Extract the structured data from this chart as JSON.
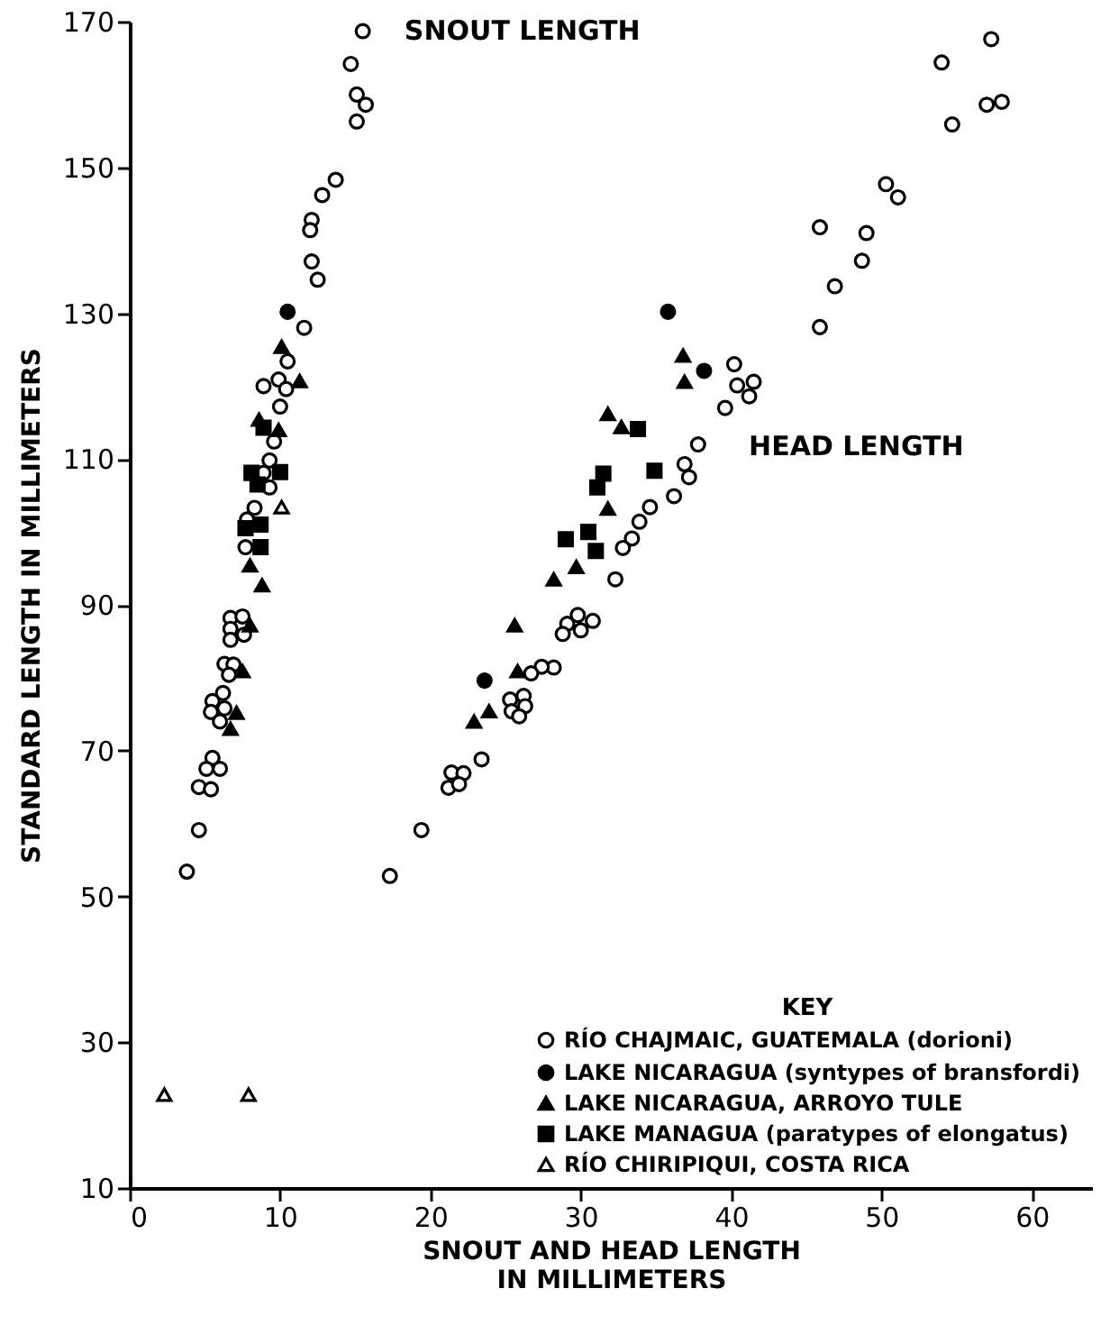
{
  "chart_data": {
    "type": "scatter",
    "xlabel": "SNOUT AND HEAD LENGTH\nIN MILLIMETERS",
    "ylabel": "STANDARD LENGTH IN MILLIMETERS",
    "legend_title": "KEY",
    "legend": "bottom right",
    "grid": false,
    "xlim": [
      0,
      64
    ],
    "xticks": [
      0,
      10,
      20,
      30,
      40,
      50,
      60
    ],
    "ylim": [
      10,
      170
    ],
    "yticks": [
      10,
      30,
      50,
      70,
      90,
      110,
      130,
      150,
      170
    ],
    "annotations": [
      "SNOUT LENGTH",
      "HEAD LENGTH"
    ],
    "series": [
      {
        "name": "RÍO CHAJMAIC, GUATEMALA (dorioni)",
        "color": "#000000",
        "marker": "circle-open",
        "x": [
          15.5,
          14.7,
          15.1,
          15.7,
          15.1,
          13.7,
          12.8,
          12.1,
          12.0,
          12.1,
          12.5,
          11.6,
          10.5,
          8.9,
          9.9,
          10.4,
          10.0,
          9.6,
          9.3,
          8.9,
          9.3,
          8.3,
          7.8,
          7.7,
          6.7,
          7.5,
          6.7,
          7.6,
          6.7,
          6.3,
          6.9,
          6.6,
          6.2,
          5.5,
          6.3,
          5.4,
          6.0,
          5.5,
          5.1,
          6.0,
          4.6,
          5.4,
          4.6,
          3.8,
          17.3,
          57.3,
          54.0,
          57.0,
          58.0,
          54.7,
          50.3,
          51.1,
          45.9,
          49.0,
          48.7,
          46.9,
          45.9,
          40.2,
          40.4,
          41.5,
          41.2,
          39.6,
          37.8,
          36.9,
          37.2,
          36.2,
          34.6,
          33.9,
          33.4,
          32.8,
          32.3,
          30.8,
          29.8,
          29.1,
          30.0,
          28.8,
          28.2,
          27.4,
          26.7,
          25.3,
          26.2,
          26.3,
          25.4,
          25.9,
          23.4,
          21.4,
          22.2,
          21.2,
          21.9,
          19.4
        ],
        "values": [
          168.7,
          164.2,
          160,
          158.6,
          156.3,
          148.3,
          146.2,
          142.8,
          141.4,
          137.1,
          134.6,
          128,
          123.4,
          120.0,
          120.9,
          119.6,
          117.2,
          112.4,
          109.8,
          108.1,
          106.1,
          103.3,
          101.7,
          97.9,
          88.2,
          88.4,
          86.7,
          85.9,
          85.2,
          81.9,
          81.8,
          80.4,
          77.9,
          76.8,
          75.8,
          75.3,
          74.0,
          69.0,
          67.5,
          67.5,
          65.0,
          64.7,
          59.1,
          53.4,
          52.8,
          167.6,
          164.4,
          158.6,
          159.0,
          155.9,
          147.7,
          145.9,
          141.8,
          141.0,
          137.2,
          133.7,
          128.1,
          123.0,
          120.1,
          120.6,
          118.6,
          117.0,
          112.0,
          109.3,
          107.5,
          104.9,
          103.4,
          101.4,
          99.1,
          97.8,
          93.5,
          87.8,
          88.6,
          87.4,
          86.5,
          86.0,
          81.4,
          81.5,
          80.6,
          77.0,
          77.5,
          76.1,
          75.4,
          74.7,
          68.8,
          67.0,
          66.9,
          64.9,
          65.4,
          59.1
        ]
      },
      {
        "name": "LAKE NICARAGUA (syntypes of bransfordi)",
        "color": "#000000",
        "marker": "circle",
        "x": [
          10.5,
          35.8,
          38.2,
          23.6
        ],
        "values": [
          130.2,
          130.2,
          122.1,
          79.6
        ]
      },
      {
        "name": "LAKE NICARAGUA, ARROYO TULE",
        "color": "#000000",
        "marker": "triangle",
        "x": [
          10.1,
          11.3,
          8.6,
          9.9,
          8.0,
          8.8,
          8.0,
          7.5,
          7.1,
          6.7,
          36.8,
          36.9,
          31.8,
          32.7,
          31.8,
          29.7,
          28.2,
          25.6,
          25.8,
          23.9,
          22.9
        ],
        "values": [
          125.4,
          120.7,
          115.4,
          114.0,
          95.4,
          92.7,
          87.2,
          80.9,
          75.2,
          73.0,
          124.2,
          120.6,
          116.2,
          114.4,
          103.2,
          95.2,
          93.5,
          87.2,
          80.9,
          75.4,
          74.0
        ]
      },
      {
        "name": "LAKE MANAGUA (paratypes of elongatus)",
        "color": "#000000",
        "marker": "square",
        "x": [
          8.1,
          10.0,
          8.5,
          8.9,
          7.7,
          8.7,
          8.7,
          33.8,
          34.9,
          31.5,
          31.1,
          29.0,
          30.5,
          31.0
        ],
        "values": [
          108.1,
          108.2,
          106.5,
          114.3,
          100.5,
          101,
          97.9,
          114.1,
          108.4,
          108.0,
          106.1,
          99.0,
          100.0,
          97.4
        ]
      },
      {
        "name": "RÍO CHIRIPIQUI, COSTA RICA",
        "color": "#000000",
        "marker": "triangle-open",
        "x": [
          10.1,
          2.3,
          7.9
        ],
        "values": [
          103.4,
          22.8,
          22.8
        ]
      }
    ]
  }
}
